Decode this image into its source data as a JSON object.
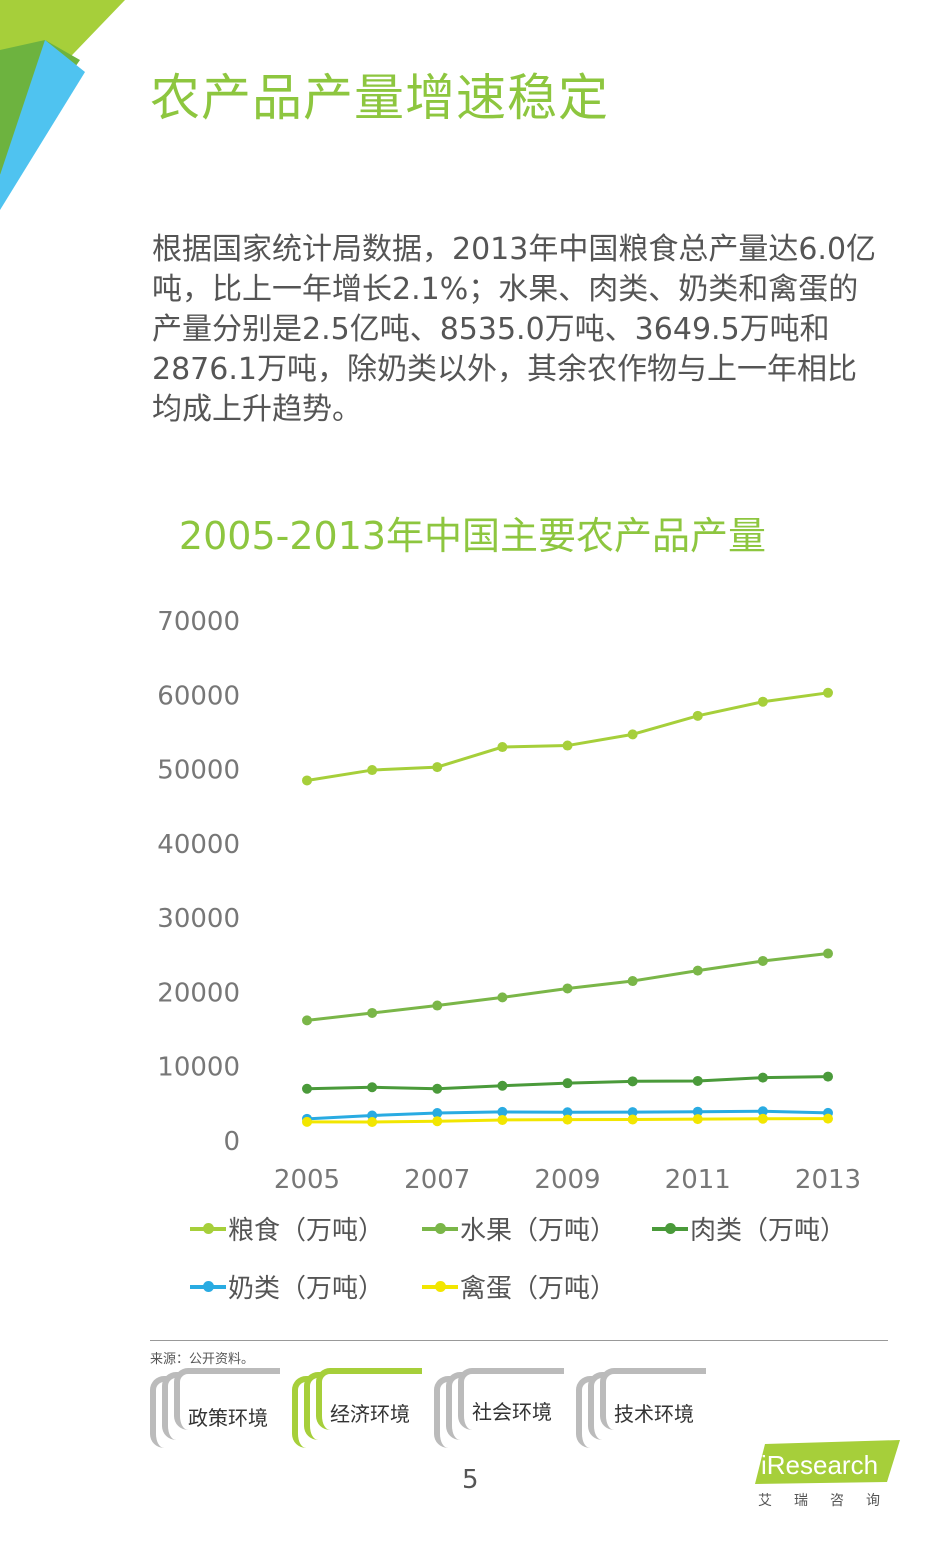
{
  "page": {
    "title": "农产品产量增速稳定",
    "body": "根据国家统计局数据，2013年中国粮食总产量达6.0亿吨，比上一年增长2.1%；水果、肉类、奶类和禽蛋的产量分别是2.5亿吨、8535.0万吨、3649.5万吨和2876.1万吨，除奶类以外，其余农作物与上一年相比均成上升趋势。",
    "source": "来源：公开资料。",
    "page_number": "5",
    "tabs": [
      {
        "label": "政策环境",
        "active": false
      },
      {
        "label": "经济环境",
        "active": true
      },
      {
        "label": "社会环境",
        "active": false
      },
      {
        "label": "技术环境",
        "active": false
      }
    ],
    "logo": {
      "text": "iResearch",
      "sub": "艾瑞咨询"
    },
    "colors": {
      "accent": "#8dc63f",
      "corner_green_dark": "#6db33f",
      "corner_lime": "#a6cf3a",
      "corner_blue": "#4fc3f0"
    }
  },
  "chart_data": {
    "type": "line",
    "title": "2005-2013年中国主要农产品产量",
    "x": [
      2005,
      2006,
      2007,
      2008,
      2009,
      2010,
      2011,
      2012,
      2013
    ],
    "x_tick_labels": [
      "2005",
      "2007",
      "2009",
      "2011",
      "2013"
    ],
    "y_ticks": [
      0,
      10000,
      20000,
      30000,
      40000,
      50000,
      60000,
      70000
    ],
    "ylim": [
      0,
      70000
    ],
    "grid": false,
    "legend_position": "bottom",
    "series": [
      {
        "name": "粮食（万吨）",
        "color": "#a6cf3a",
        "values": [
          48400,
          49800,
          50200,
          52900,
          53100,
          54600,
          57100,
          59000,
          60200
        ]
      },
      {
        "name": "水果（万吨）",
        "color": "#7ab648",
        "values": [
          16100,
          17100,
          18100,
          19200,
          20400,
          21400,
          22800,
          24100,
          25100
        ]
      },
      {
        "name": "肉类（万吨）",
        "color": "#4a9a3a",
        "values": [
          6900,
          7100,
          6900,
          7300,
          7650,
          7900,
          7950,
          8400,
          8535
        ]
      },
      {
        "name": "奶类（万吨）",
        "color": "#29abe2",
        "values": [
          2850,
          3300,
          3630,
          3780,
          3730,
          3750,
          3810,
          3870,
          3650
        ]
      },
      {
        "name": "禽蛋（万吨）",
        "color": "#f2e600",
        "values": [
          2440,
          2420,
          2530,
          2700,
          2740,
          2760,
          2810,
          2860,
          2876
        ]
      }
    ]
  }
}
